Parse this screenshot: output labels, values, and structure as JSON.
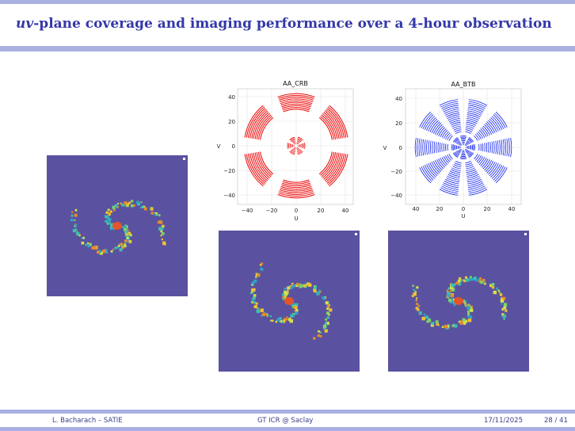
{
  "slide": {
    "title_uv": "uv",
    "title_rest": "-plane coverage and imaging performance over a 4-hour observation"
  },
  "plots": {
    "left": {
      "title": "AA_CRB",
      "xlabel": "U",
      "ylabel": "V",
      "color": "#ee1111",
      "yticks": [
        "40",
        "20",
        "0",
        "−20",
        "−40"
      ],
      "xticks": [
        "−40",
        "−20",
        "0",
        "20",
        "40"
      ]
    },
    "right": {
      "title": "AA_BTB",
      "xlabel": "U",
      "ylabel": "V",
      "color": "#1122ee",
      "yticks": [
        "40",
        "20",
        "0",
        "−20",
        "−40"
      ],
      "xticks": [
        "40",
        "20",
        "0",
        "20",
        "40"
      ]
    }
  },
  "footer": {
    "author": "L. Bacharach – SATIE",
    "event": "GT ICR @ Saclay",
    "date": "17/11/2025",
    "page": "28 / 41"
  },
  "colors": {
    "bar": "#aab0e2",
    "title": "#3338a8",
    "map_bg": "#5a52a0"
  }
}
